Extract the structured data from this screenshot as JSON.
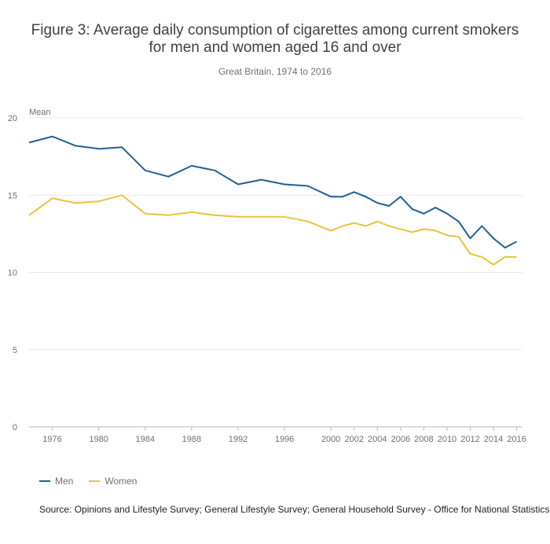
{
  "chart_data": {
    "type": "line",
    "title_line1": "Figure 3: Average daily consumption of cigarettes among current smokers",
    "title_line2": "for men and women aged 16 and over",
    "subtitle": "Great Britain, 1974 to 2016",
    "ylabel": "Mean",
    "ylim": [
      0,
      20
    ],
    "yticks": [
      0,
      5,
      10,
      15,
      20
    ],
    "xlim": [
      1974,
      2016.5
    ],
    "xticks": [
      1976,
      1980,
      1984,
      1988,
      1992,
      1996,
      2000,
      2002,
      2004,
      2006,
      2008,
      2010,
      2012,
      2014,
      2016
    ],
    "x": [
      1974,
      1976,
      1978,
      1980,
      1982,
      1984,
      1986,
      1988,
      1990,
      1992,
      1994,
      1996,
      1998,
      2000,
      2001,
      2002,
      2003,
      2004,
      2005,
      2006,
      2007,
      2008,
      2009,
      2010,
      2011,
      2012,
      2013,
      2014,
      2015,
      2016
    ],
    "series": [
      {
        "name": "Men",
        "color": "#206095",
        "values": [
          18.4,
          18.8,
          18.2,
          18.0,
          18.1,
          16.6,
          16.2,
          16.9,
          16.6,
          15.7,
          16.0,
          15.7,
          15.6,
          14.9,
          14.9,
          15.2,
          14.9,
          14.5,
          14.3,
          14.9,
          14.1,
          13.8,
          14.2,
          13.8,
          13.3,
          12.2,
          13.0,
          12.2,
          11.6,
          12.0
        ]
      },
      {
        "name": "Women",
        "color": "#e9c43b",
        "values": [
          13.7,
          14.8,
          14.5,
          14.6,
          15.0,
          13.8,
          13.7,
          13.9,
          13.7,
          13.6,
          13.6,
          13.6,
          13.3,
          12.7,
          13.0,
          13.2,
          13.0,
          13.3,
          13.0,
          12.8,
          12.6,
          12.8,
          12.7,
          12.4,
          12.3,
          11.2,
          11.0,
          10.5,
          11.0,
          11.0
        ]
      }
    ],
    "legend_position": "bottom-left",
    "source": "Source: Opinions and Lifestyle Survey; General Lifestyle Survey; General Household Survey - Office for National Statistics"
  }
}
